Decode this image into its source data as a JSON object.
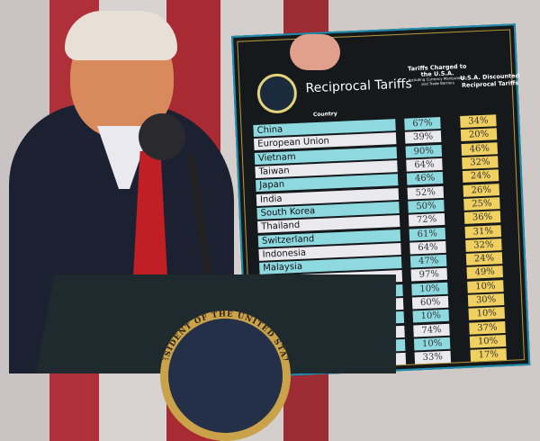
{
  "board": {
    "title": "Reciprocal Tariffs",
    "col_country": "Country",
    "col_charged": "Tariffs Charged to the U.S.A.",
    "col_charged_note": "Including Currency Manipulation and Trade Barriers",
    "col_discounted": "U.S.A. Discounted Reciprocal Tariffs",
    "rows": [
      {
        "country": "China",
        "charged": "67%",
        "discounted": "34%"
      },
      {
        "country": "European Union",
        "charged": "39%",
        "discounted": "20%"
      },
      {
        "country": "Vietnam",
        "charged": "90%",
        "discounted": "46%"
      },
      {
        "country": "Taiwan",
        "charged": "64%",
        "discounted": "32%"
      },
      {
        "country": "Japan",
        "charged": "46%",
        "discounted": "24%"
      },
      {
        "country": "India",
        "charged": "52%",
        "discounted": "26%"
      },
      {
        "country": "South Korea",
        "charged": "50%",
        "discounted": "25%"
      },
      {
        "country": "Thailand",
        "charged": "72%",
        "discounted": "36%"
      },
      {
        "country": "Switzerland",
        "charged": "61%",
        "discounted": "31%"
      },
      {
        "country": "Indonesia",
        "charged": "64%",
        "discounted": "32%"
      },
      {
        "country": "Malaysia",
        "charged": "47%",
        "discounted": "24%"
      },
      {
        "country": "",
        "charged": "97%",
        "discounted": "49%"
      },
      {
        "country": "",
        "charged": "10%",
        "discounted": "10%"
      },
      {
        "country": "",
        "charged": "60%",
        "discounted": "30%"
      },
      {
        "country": "",
        "charged": "10%",
        "discounted": "10%"
      },
      {
        "country": "",
        "charged": "74%",
        "discounted": "37%"
      },
      {
        "country": "",
        "charged": "10%",
        "discounted": "10%"
      },
      {
        "country": "",
        "charged": "33%",
        "discounted": "17%"
      }
    ]
  },
  "podium_seal_text": "PRESIDENT OF THE UNITED STATES",
  "colors": {
    "teal_row": "#8ed8e0",
    "light_row": "#eaeaee",
    "gold": "#f0d060",
    "board": "#15191c"
  }
}
